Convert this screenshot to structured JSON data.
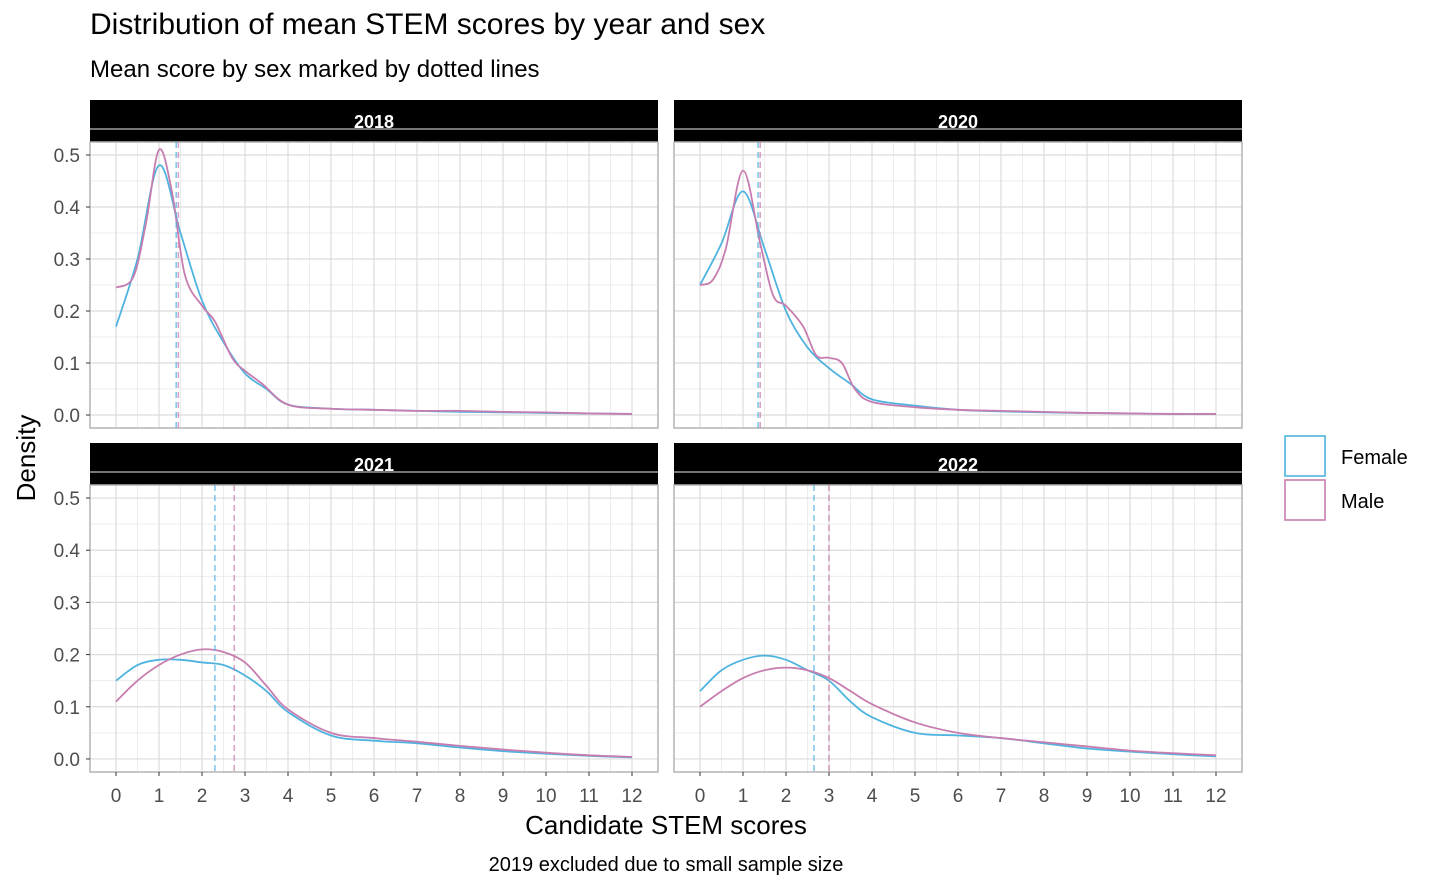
{
  "title": "Distribution of mean STEM scores by year and sex",
  "subtitle": "Mean score by sex marked by dotted lines",
  "caption": "2019 excluded due to small sample size",
  "chart_data": {
    "type": "line",
    "title": "Distribution of mean STEM scores by year and sex",
    "subtitle": "Mean score by sex marked by dotted lines",
    "xlabel": "Candidate STEM scores",
    "ylabel": "Density",
    "xlim": [
      0,
      12
    ],
    "ylim": [
      0,
      0.5
    ],
    "x_ticks": [
      "0",
      "1",
      "2",
      "3",
      "4",
      "5",
      "6",
      "7",
      "8",
      "9",
      "10",
      "11",
      "12"
    ],
    "y_ticks": [
      "0.0",
      "0.1",
      "0.2",
      "0.3",
      "0.4",
      "0.5"
    ],
    "grid": true,
    "legend_position": "right",
    "legend": [
      {
        "key": "female",
        "label": "Female",
        "color": "#4fb3e0"
      },
      {
        "key": "male",
        "label": "Male",
        "color": "#c77daf"
      }
    ],
    "panels": [
      {
        "label": "2018",
        "mean_female": 1.4,
        "mean_male": 1.45,
        "series": [
          {
            "key": "female",
            "x": [
              0,
              0.5,
              1,
              1.5,
              2,
              2.5,
              3,
              3.5,
              4,
              5,
              6,
              7,
              8,
              9,
              10,
              11,
              12
            ],
            "y": [
              0.17,
              0.3,
              0.48,
              0.35,
              0.22,
              0.14,
              0.08,
              0.05,
              0.02,
              0.012,
              0.01,
              0.008,
              0.006,
              0.005,
              0.004,
              0.003,
              0.002
            ]
          },
          {
            "key": "male",
            "x": [
              0,
              0.4,
              0.7,
              1,
              1.3,
              1.6,
              2,
              2.3,
              2.7,
              3,
              3.4,
              4,
              5,
              6,
              7,
              8,
              9,
              10,
              11,
              12
            ],
            "y": [
              0.245,
              0.265,
              0.37,
              0.51,
              0.43,
              0.27,
              0.21,
              0.18,
              0.11,
              0.085,
              0.06,
              0.02,
              0.012,
              0.01,
              0.008,
              0.008,
              0.006,
              0.005,
              0.003,
              0.002
            ]
          }
        ]
      },
      {
        "label": "2020",
        "mean_female": 1.35,
        "mean_male": 1.4,
        "series": [
          {
            "key": "female",
            "x": [
              0,
              0.5,
              1,
              1.5,
              2,
              2.5,
              3,
              3.5,
              4,
              5,
              6,
              7,
              8,
              9,
              10,
              11,
              12
            ],
            "y": [
              0.25,
              0.33,
              0.43,
              0.32,
              0.2,
              0.13,
              0.09,
              0.06,
              0.03,
              0.018,
              0.01,
              0.007,
              0.005,
              0.004,
              0.003,
              0.002,
              0.002
            ]
          },
          {
            "key": "male",
            "x": [
              0,
              0.3,
              0.6,
              1,
              1.4,
              1.7,
              2,
              2.4,
              2.7,
              3,
              3.3,
              3.6,
              4,
              5,
              6,
              7,
              8,
              9,
              10,
              11,
              12
            ],
            "y": [
              0.25,
              0.26,
              0.32,
              0.47,
              0.33,
              0.23,
              0.21,
              0.17,
              0.115,
              0.11,
              0.1,
              0.05,
              0.025,
              0.015,
              0.01,
              0.008,
              0.006,
              0.004,
              0.003,
              0.002,
              0.002
            ]
          }
        ]
      },
      {
        "label": "2021",
        "mean_female": 2.3,
        "mean_male": 2.75,
        "series": [
          {
            "key": "female",
            "x": [
              0,
              0.5,
              1,
              1.5,
              2,
              2.5,
              3,
              3.5,
              4,
              5,
              6,
              7,
              8,
              9,
              10,
              11,
              12
            ],
            "y": [
              0.15,
              0.18,
              0.19,
              0.19,
              0.185,
              0.18,
              0.16,
              0.13,
              0.09,
              0.045,
              0.035,
              0.03,
              0.022,
              0.015,
              0.01,
              0.006,
              0.003
            ]
          },
          {
            "key": "male",
            "x": [
              0,
              0.5,
              1,
              1.5,
              2,
              2.5,
              3,
              3.5,
              4,
              5,
              6,
              7,
              8,
              9,
              10,
              11,
              12
            ],
            "y": [
              0.11,
              0.15,
              0.18,
              0.2,
              0.21,
              0.205,
              0.185,
              0.14,
              0.095,
              0.05,
              0.04,
              0.033,
              0.025,
              0.018,
              0.012,
              0.007,
              0.004
            ]
          }
        ]
      },
      {
        "label": "2022",
        "mean_female": 2.65,
        "mean_male": 3.0,
        "series": [
          {
            "key": "female",
            "x": [
              0,
              0.5,
              1,
              1.5,
              2,
              2.5,
              3,
              3.5,
              4,
              5,
              6,
              7,
              8,
              9,
              10,
              11,
              12
            ],
            "y": [
              0.13,
              0.17,
              0.19,
              0.198,
              0.19,
              0.17,
              0.15,
              0.11,
              0.08,
              0.05,
              0.045,
              0.04,
              0.03,
              0.02,
              0.014,
              0.009,
              0.005
            ]
          },
          {
            "key": "male",
            "x": [
              0,
              0.5,
              1,
              1.5,
              2,
              2.5,
              3,
              3.5,
              4,
              5,
              6,
              7,
              8,
              9,
              10,
              11,
              12
            ],
            "y": [
              0.1,
              0.13,
              0.155,
              0.17,
              0.175,
              0.17,
              0.155,
              0.13,
              0.105,
              0.07,
              0.05,
              0.04,
              0.032,
              0.024,
              0.016,
              0.011,
              0.007
            ]
          }
        ]
      }
    ]
  }
}
